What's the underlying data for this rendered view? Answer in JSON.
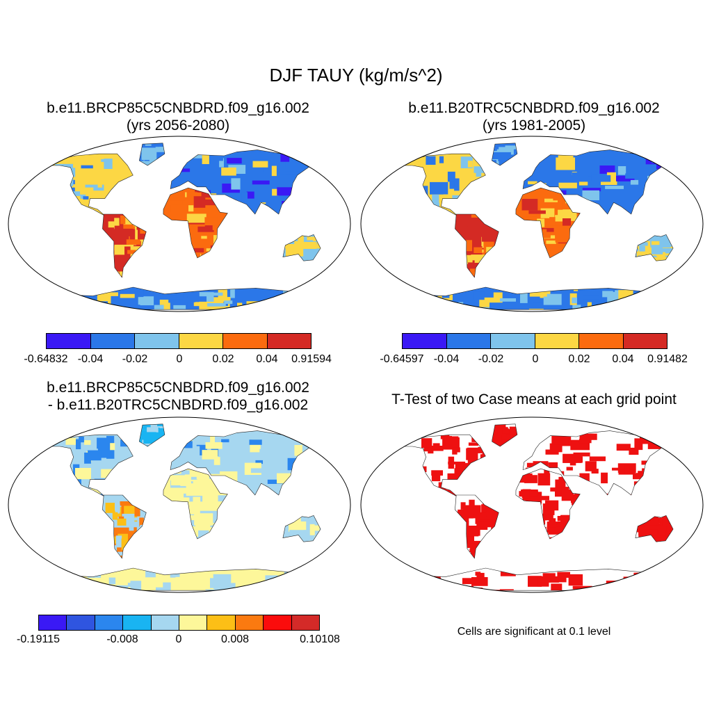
{
  "title": "DJF TAUY (kg/m/s^2)",
  "panels": [
    {
      "title_line1": "b.e11.BRCP85C5CNBDRD.f09_g16.002",
      "title_line2": "(yrs 2056-2080)",
      "colorbar": {
        "colors": [
          "#3a19f5",
          "#2b77e8",
          "#7fc4ec",
          "#fcd744",
          "#fb6b0f",
          "#d42a24"
        ],
        "labels": [
          "-0.64832",
          "-0.04",
          "-0.02",
          "0",
          "0.02",
          "0.04",
          "0.91594"
        ]
      }
    },
    {
      "title_line1": "b.e11.B20TRC5CNBDRD.f09_g16.002",
      "title_line2": "(yrs 1981-2005)",
      "colorbar": {
        "colors": [
          "#3a19f5",
          "#2b77e8",
          "#7fc4ec",
          "#fcd744",
          "#fb6b0f",
          "#d42a24"
        ],
        "labels": [
          "-0.64597",
          "-0.04",
          "-0.02",
          "0",
          "0.02",
          "0.04",
          "0.91482"
        ]
      }
    },
    {
      "title_line1": "b.e11.BRCP85C5CNBDRD.f09_g16.002",
      "title_line2": "- b.e11.B20TRC5CNBDRD.f09_g16.002",
      "colorbar": {
        "colors": [
          "#3a19f5",
          "#2f55e0",
          "#2b86ee",
          "#19b4f2",
          "#a6d7f0",
          "#fdf79a",
          "#fcbf16",
          "#fb7a10",
          "#fb0c0c",
          "#d42a28"
        ],
        "labels": [
          "-0.19115",
          "-0.008",
          "0",
          "0.008",
          "0.10108"
        ]
      }
    },
    {
      "title_line1": "T-Test of two Case means at each grid point",
      "note": "Cells are significant at 0.1 level",
      "fill_color": "#ee1111"
    }
  ]
}
